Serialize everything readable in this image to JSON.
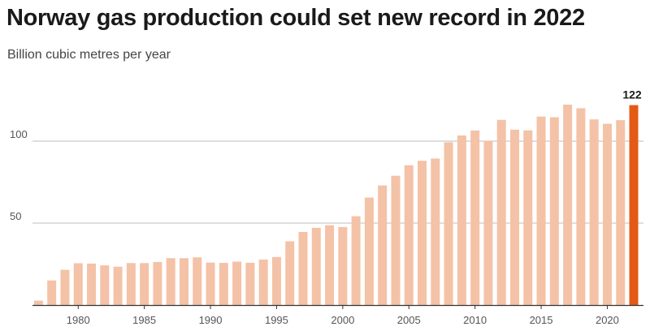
{
  "header": {
    "title": "Norway gas production could set new record in 2022",
    "subtitle": "Billion cubic metres per year"
  },
  "colors": {
    "bar": "#f4c2a7",
    "highlight": "#e35a14",
    "grid": "#bdbdbd",
    "axis": "#333333"
  },
  "chart_data": {
    "type": "bar",
    "title": "Norway gas production could set new record in 2022",
    "subtitle": "Billion cubic metres per year",
    "xlabel": "",
    "ylabel": "",
    "ylim": [
      0,
      125
    ],
    "yticks": [
      50,
      100
    ],
    "xticks": [
      1980,
      1985,
      1990,
      1995,
      2000,
      2005,
      2010,
      2015,
      2020
    ],
    "grid": "horizontal",
    "legend": "none",
    "highlight_category": 2022,
    "annotations": [
      {
        "x": 2022,
        "text": "122"
      }
    ],
    "categories": [
      1977,
      1978,
      1979,
      1980,
      1981,
      1982,
      1983,
      1984,
      1985,
      1986,
      1987,
      1988,
      1989,
      1990,
      1991,
      1992,
      1993,
      1994,
      1995,
      1996,
      1997,
      1998,
      1999,
      2000,
      2001,
      2002,
      2003,
      2004,
      2005,
      2006,
      2007,
      2008,
      2009,
      2010,
      2011,
      2012,
      2013,
      2014,
      2015,
      2016,
      2017,
      2018,
      2019,
      2020,
      2021,
      2022
    ],
    "values": [
      2.7,
      15,
      21.5,
      25.5,
      25.3,
      24.2,
      23.4,
      25.6,
      25.6,
      26.3,
      28.6,
      28.6,
      29.1,
      25.9,
      25.7,
      26.5,
      25.8,
      27.8,
      29.3,
      38.9,
      44.6,
      47.1,
      48.7,
      47.6,
      54.2,
      65.6,
      73,
      78.9,
      85.3,
      88,
      89.4,
      99.3,
      103.5,
      106.5,
      100.3,
      113,
      107,
      106.6,
      115,
      114.6,
      122.3,
      120.1,
      113.3,
      110.6,
      112.8,
      122
    ]
  }
}
